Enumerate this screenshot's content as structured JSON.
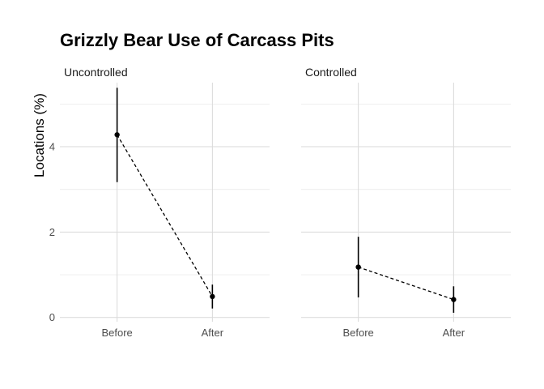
{
  "chart_data": {
    "type": "line",
    "title": "Grizzly Bear Use of Carcass Pits",
    "ylabel": "Locations (%)",
    "xlabel": "",
    "categories": [
      "Before",
      "After"
    ],
    "ylim": [
      -0.1,
      5.5
    ],
    "yticks": [
      0,
      2,
      4
    ],
    "grid": true,
    "panels": [
      {
        "label": "Uncontrolled",
        "points": [
          {
            "x": "Before",
            "y": 4.28,
            "ymin": 3.17,
            "ymax": 5.38
          },
          {
            "x": "After",
            "y": 0.49,
            "ymin": 0.21,
            "ymax": 0.77
          }
        ]
      },
      {
        "label": "Controlled",
        "points": [
          {
            "x": "Before",
            "y": 1.18,
            "ymin": 0.47,
            "ymax": 1.89
          },
          {
            "x": "After",
            "y": 0.42,
            "ymin": 0.11,
            "ymax": 0.73
          }
        ]
      }
    ]
  }
}
